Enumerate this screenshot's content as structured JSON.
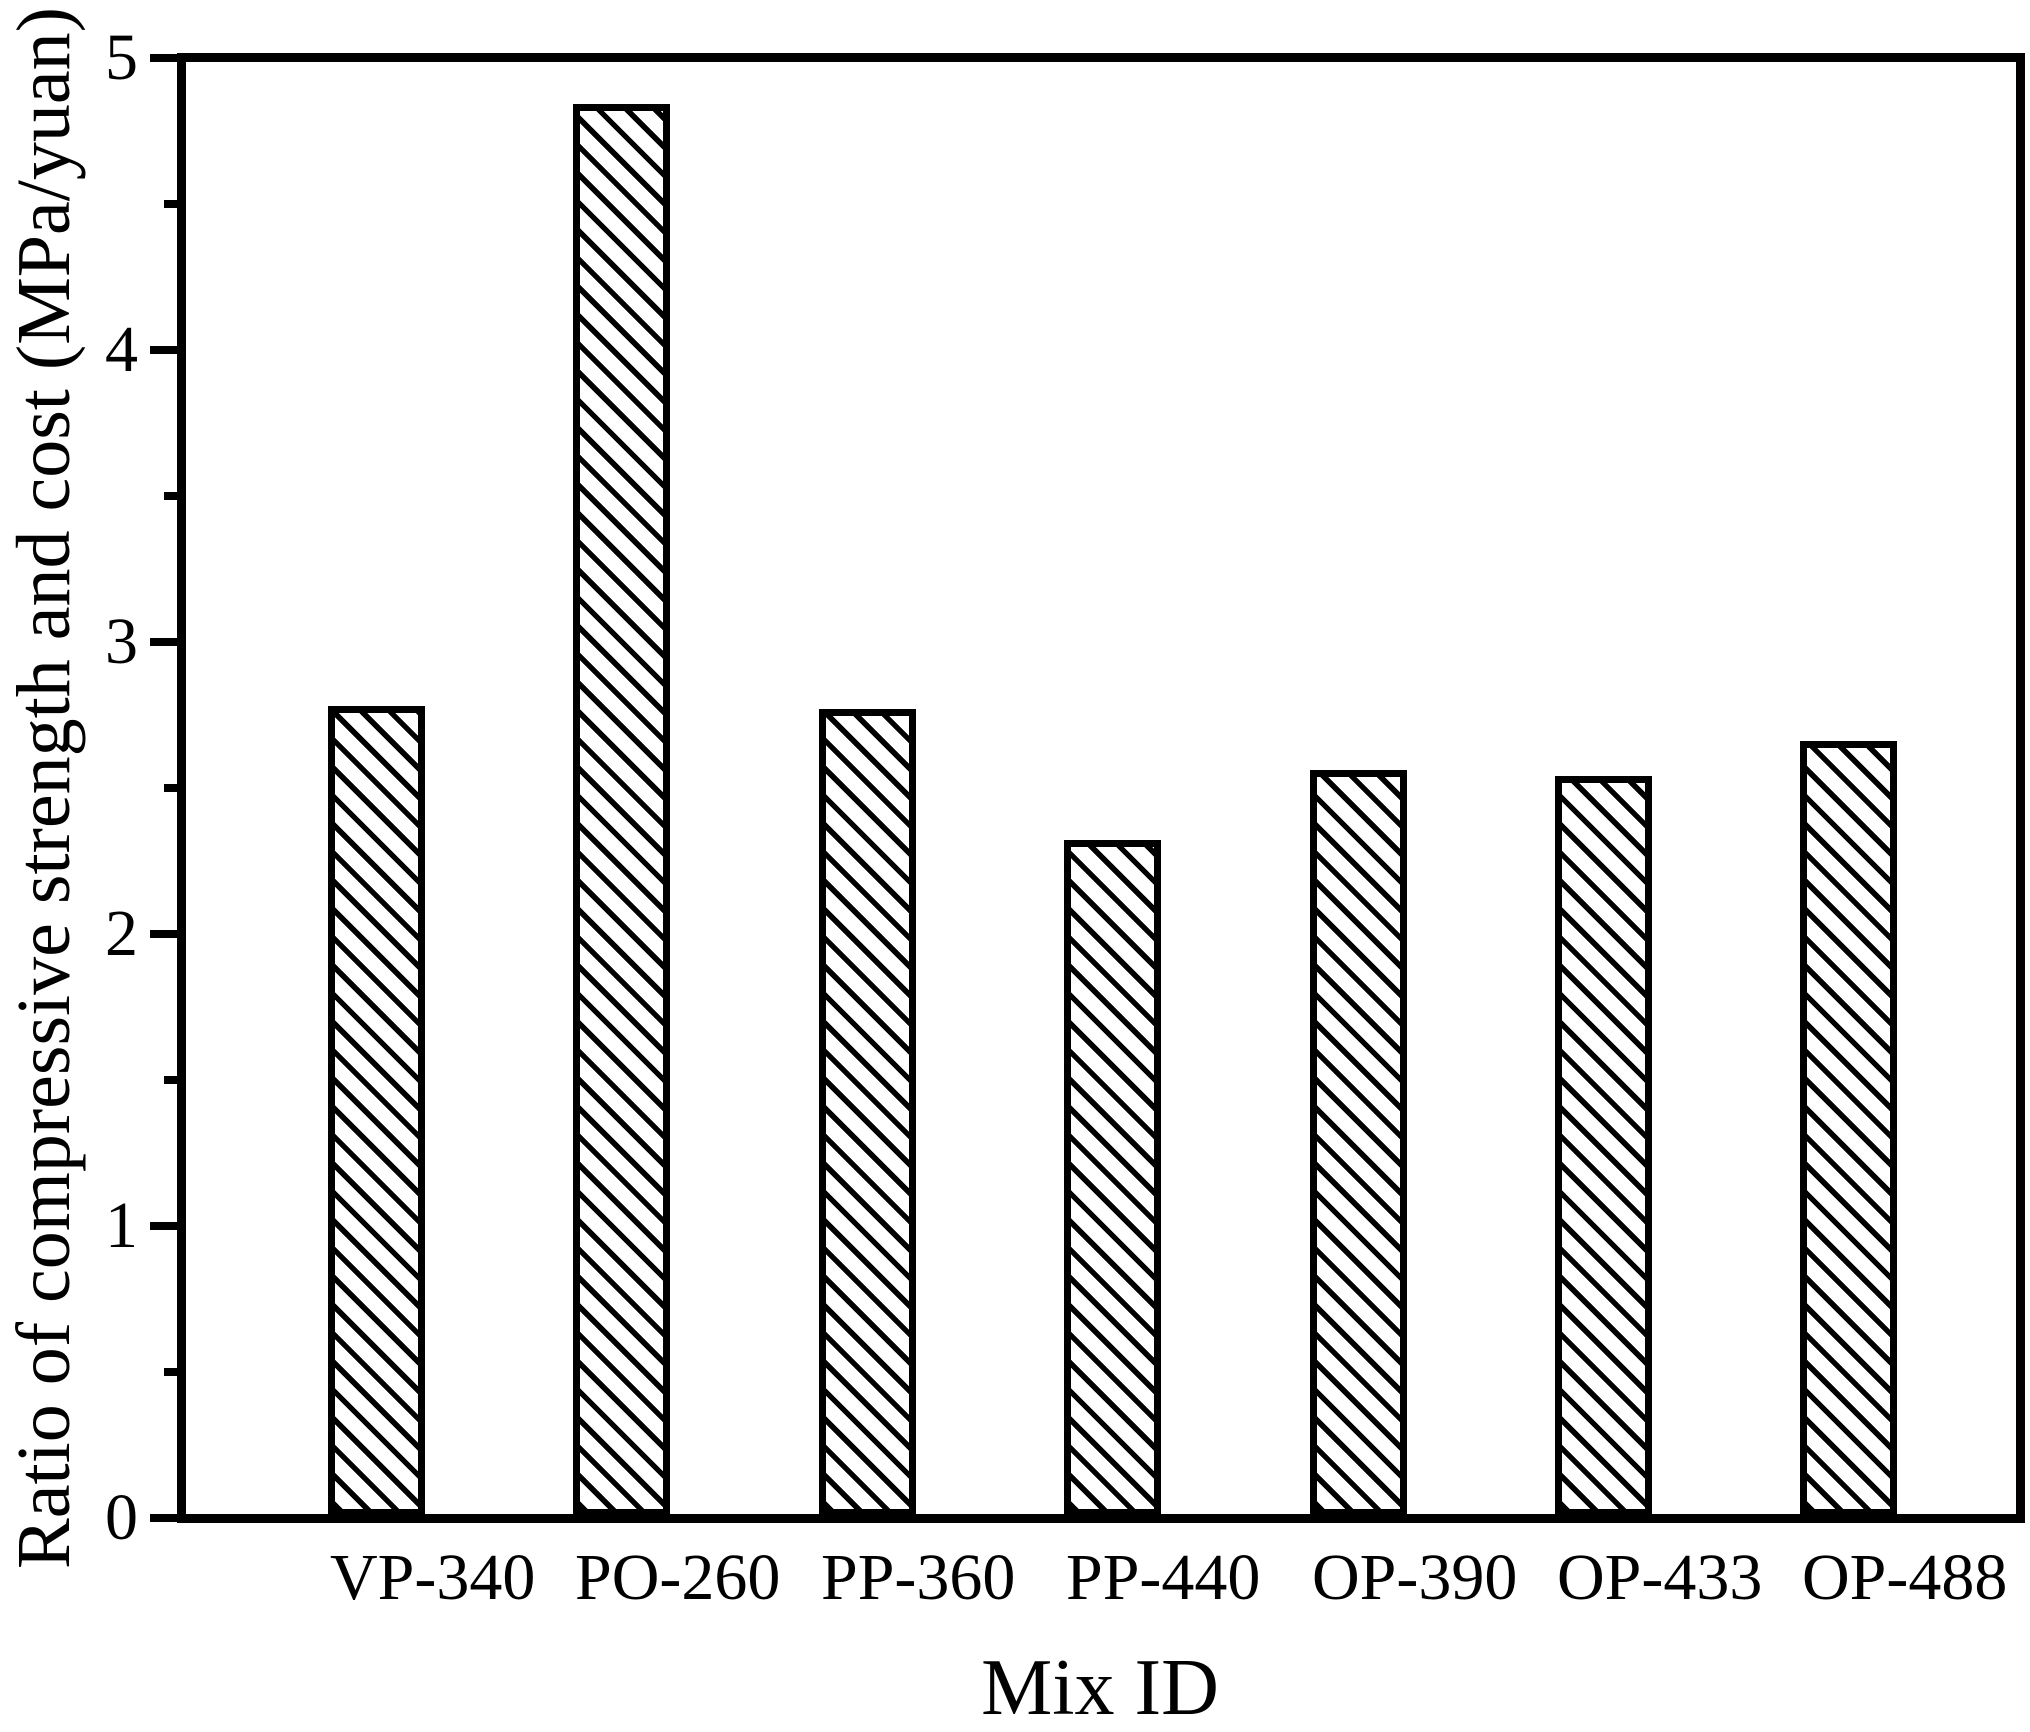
{
  "figure": {
    "background": "#ffffff",
    "ink_color": "#000000"
  },
  "chart_data": {
    "type": "bar",
    "title": "",
    "categories": [
      "VP-340",
      "PO-260",
      "PP-360",
      "PP-440",
      "OP-390",
      "OP-433",
      "OP-488"
    ],
    "values": [
      2.78,
      4.84,
      2.77,
      2.32,
      2.56,
      2.54,
      2.66
    ],
    "xlabel": "Mix ID",
    "ylabel": "Ratio of compressive strength and cost (MPa/yuan)",
    "ylim": [
      0,
      5
    ],
    "ytick_labels": [
      "0",
      "1",
      "2",
      "3",
      "4",
      "5"
    ],
    "minor_yticks": [
      0.5,
      1.5,
      2.5,
      3.5,
      4.5
    ],
    "grid": false,
    "legend": "none",
    "bar_fill": "#ffffff",
    "bar_hatch": "backslash-diagonal",
    "bar_edge_color": "#000000"
  }
}
